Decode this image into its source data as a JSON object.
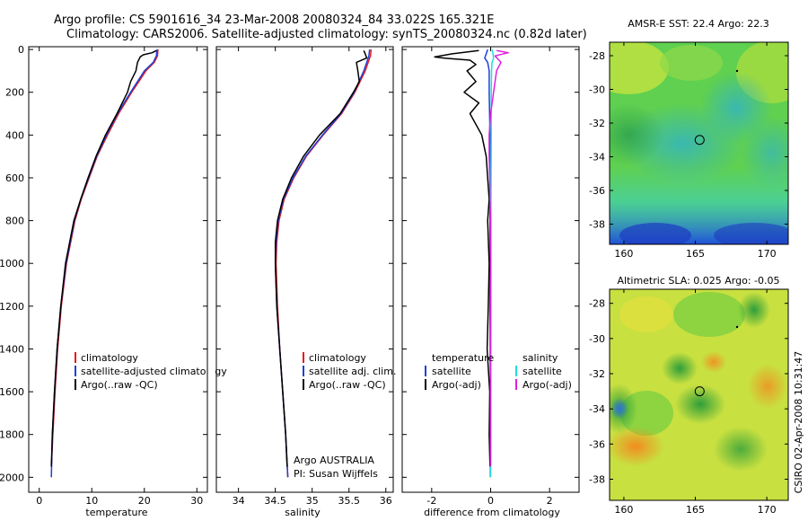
{
  "header": {
    "title_line1": "Argo profile: CS 5901616_34 23-Mar-2008 20080324_84 33.022S 165.321E",
    "title_line2": "Climatology: CARS2006. Satellite-adjusted climatology: synTS_20080324.nc (0.82d later)"
  },
  "side_stamp": "CSIRO 02-Apr-2008 10:31:47",
  "credit": {
    "line1": "Argo AUSTRALIA",
    "line2": "PI: Susan Wijffels"
  },
  "colors": {
    "climatology": "#e41a1c",
    "satellite": "#1f3fd8",
    "argo": "#000000",
    "sal_satellite": "#22dddd",
    "sal_argo": "#e020e0"
  },
  "chart_data": [
    {
      "id": "temperature",
      "type": "line",
      "xlabel": "temperature",
      "ylabel": "",
      "xlim": [
        -2,
        32
      ],
      "ylim": [
        2000,
        0
      ],
      "xticks": [
        0,
        10,
        20,
        30
      ],
      "yticks": [
        0,
        200,
        400,
        600,
        800,
        1000,
        1200,
        1400,
        1600,
        1800,
        2000
      ],
      "legend": [
        "climatology",
        "satellite-adjusted climatology",
        "Argo(..raw -QC)"
      ],
      "series": [
        {
          "name": "climatology",
          "color": "#e41a1c",
          "depth": [
            0,
            30,
            60,
            100,
            200,
            300,
            400,
            500,
            600,
            700,
            800,
            1000,
            1200,
            1400,
            1600,
            1800,
            1950
          ],
          "values": [
            22.6,
            22.5,
            21.9,
            20.3,
            17.6,
            15.1,
            13.0,
            11.0,
            9.5,
            8.0,
            6.8,
            5.2,
            4.2,
            3.5,
            3.0,
            2.6,
            2.3
          ]
        },
        {
          "name": "satellite-adjusted climatology",
          "color": "#1f3fd8",
          "depth": [
            0,
            30,
            60,
            100,
            200,
            300,
            400,
            500,
            600,
            700,
            800,
            1000,
            1200,
            1400,
            1600,
            1800,
            2000
          ],
          "values": [
            22.4,
            22.3,
            21.7,
            20.0,
            17.4,
            14.9,
            12.8,
            10.9,
            9.4,
            7.9,
            6.7,
            5.1,
            4.1,
            3.4,
            2.9,
            2.5,
            2.3
          ]
        },
        {
          "name": "Argo(..raw -QC)",
          "color": "#000000",
          "depth": [
            5,
            15,
            25,
            35,
            60,
            100,
            150,
            200,
            300,
            400,
            500,
            600,
            700,
            800,
            1000,
            1200,
            1400,
            1600,
            1800,
            1950
          ],
          "values": [
            22.3,
            21.5,
            19.8,
            19.2,
            18.7,
            18.4,
            17.4,
            16.8,
            14.8,
            12.6,
            10.8,
            9.3,
            7.9,
            6.6,
            5.0,
            4.1,
            3.4,
            2.9,
            2.5,
            2.3
          ]
        }
      ]
    },
    {
      "id": "salinity",
      "type": "line",
      "xlabel": "salinity",
      "ylabel": "",
      "xlim": [
        33.7,
        36.1
      ],
      "ylim": [
        2000,
        0
      ],
      "xticks": [
        34,
        34.5,
        35,
        35.5,
        36
      ],
      "yticks": [
        0,
        200,
        400,
        600,
        800,
        1000,
        1200,
        1400,
        1600,
        1800,
        2000
      ],
      "legend": [
        "climatology",
        "satellite adj. clim.",
        "Argo(..raw -QC)"
      ],
      "series": [
        {
          "name": "climatology",
          "color": "#e41a1c",
          "depth": [
            0,
            30,
            60,
            100,
            200,
            300,
            400,
            500,
            600,
            700,
            800,
            900,
            1000,
            1200,
            1400,
            1600,
            1800,
            2000
          ],
          "values": [
            35.8,
            35.79,
            35.76,
            35.72,
            35.58,
            35.4,
            35.15,
            34.92,
            34.75,
            34.62,
            34.55,
            34.52,
            34.51,
            34.53,
            34.56,
            34.6,
            34.64,
            34.67
          ]
        },
        {
          "name": "satellite adj. clim.",
          "color": "#1f3fd8",
          "depth": [
            0,
            30,
            60,
            100,
            200,
            300,
            400,
            500,
            600,
            700,
            800,
            900,
            1000,
            1200,
            1400,
            1600,
            1800,
            2000
          ],
          "values": [
            35.78,
            35.77,
            35.74,
            35.7,
            35.57,
            35.39,
            35.14,
            34.91,
            34.74,
            34.61,
            34.54,
            34.51,
            34.5,
            34.52,
            34.56,
            34.6,
            34.64,
            34.67
          ]
        },
        {
          "name": "Argo(..raw -QC)",
          "color": "#000000",
          "depth": [
            5,
            20,
            40,
            60,
            100,
            150,
            200,
            300,
            400,
            500,
            600,
            700,
            800,
            900,
            1000,
            1200,
            1400,
            1600,
            1800,
            1950
          ],
          "values": [
            35.7,
            35.72,
            35.74,
            35.6,
            35.62,
            35.64,
            35.56,
            35.38,
            35.1,
            34.88,
            34.72,
            34.6,
            34.53,
            34.5,
            34.5,
            34.52,
            34.56,
            34.6,
            34.64,
            34.66
          ]
        }
      ]
    },
    {
      "id": "difference",
      "type": "line",
      "xlabel": "difference from climatology",
      "ylabel": "",
      "xlim": [
        -3,
        3
      ],
      "ylim": [
        2000,
        0
      ],
      "xticks": [
        -2,
        0,
        2
      ],
      "yticks": [
        0,
        200,
        400,
        600,
        800,
        1000,
        1200,
        1400,
        1600,
        1800,
        2000
      ],
      "legend_temperature": [
        "temperature",
        "satellite",
        "Argo(-adj)"
      ],
      "legend_salinity": [
        "salinity",
        "satellite",
        "Argo(-adj)"
      ],
      "series": [
        {
          "name": "temperature satellite",
          "color": "#1f3fd8",
          "depth": [
            0,
            20,
            40,
            60,
            100,
            200,
            400,
            800,
            1200,
            1600,
            2000
          ],
          "values": [
            -0.1,
            -0.15,
            -0.2,
            -0.1,
            -0.05,
            -0.05,
            -0.02,
            -0.02,
            -0.02,
            -0.01,
            -0.01
          ]
        },
        {
          "name": "temperature Argo(-adj)",
          "color": "#000000",
          "depth": [
            5,
            20,
            35,
            40,
            50,
            70,
            100,
            150,
            200,
            250,
            300,
            400,
            500,
            600,
            700,
            800,
            1000,
            1200,
            1400,
            1600,
            1800,
            1950
          ],
          "values": [
            -0.4,
            -1.3,
            -1.9,
            -1.6,
            -0.7,
            -0.5,
            -0.8,
            -0.5,
            -0.9,
            -0.4,
            -0.7,
            -0.3,
            -0.15,
            -0.1,
            -0.05,
            -0.1,
            -0.05,
            -0.08,
            -0.12,
            -0.03,
            -0.05,
            -0.02
          ]
        },
        {
          "name": "salinity satellite",
          "color": "#22dddd",
          "depth": [
            0,
            20,
            40,
            60,
            100,
            200,
            400,
            800,
            1200,
            1600,
            2000
          ],
          "values": [
            0.05,
            0.08,
            0.1,
            0.05,
            0.03,
            0.02,
            0.02,
            0.01,
            0.01,
            0.0,
            0.0
          ]
        },
        {
          "name": "salinity Argo(-adj)",
          "color": "#e020e0",
          "depth": [
            5,
            15,
            30,
            60,
            100,
            200,
            300,
            400,
            500,
            600,
            700,
            800,
            1000,
            1200,
            1400,
            1600,
            1800,
            1950
          ],
          "values": [
            0.2,
            0.6,
            0.15,
            0.35,
            0.2,
            0.1,
            0.0,
            -0.05,
            -0.05,
            -0.03,
            -0.02,
            0.0,
            0.0,
            0.0,
            0.0,
            0.0,
            0.0,
            0.0
          ]
        }
      ]
    },
    {
      "id": "sst_map",
      "type": "heatmap",
      "title": "AMSR-E SST: 22.4  Argo: 22.3",
      "xticks": [
        160,
        165,
        170
      ],
      "yticks": [
        -28,
        -30,
        -32,
        -34,
        -36,
        -38
      ],
      "xlim": [
        159,
        171.5
      ],
      "ylim": [
        -39.2,
        -27.2
      ],
      "marker": {
        "lon": 165.3,
        "lat": -33.0
      }
    },
    {
      "id": "sla_map",
      "type": "heatmap",
      "title": "Altimetric SLA: 0.025  Argo: -0.05",
      "xticks": [
        160,
        165,
        170
      ],
      "yticks": [
        -28,
        -30,
        -32,
        -34,
        -36,
        -38
      ],
      "xlim": [
        159,
        171.5
      ],
      "ylim": [
        -39.2,
        -27.2
      ],
      "marker": {
        "lon": 165.3,
        "lat": -33.0
      }
    }
  ]
}
